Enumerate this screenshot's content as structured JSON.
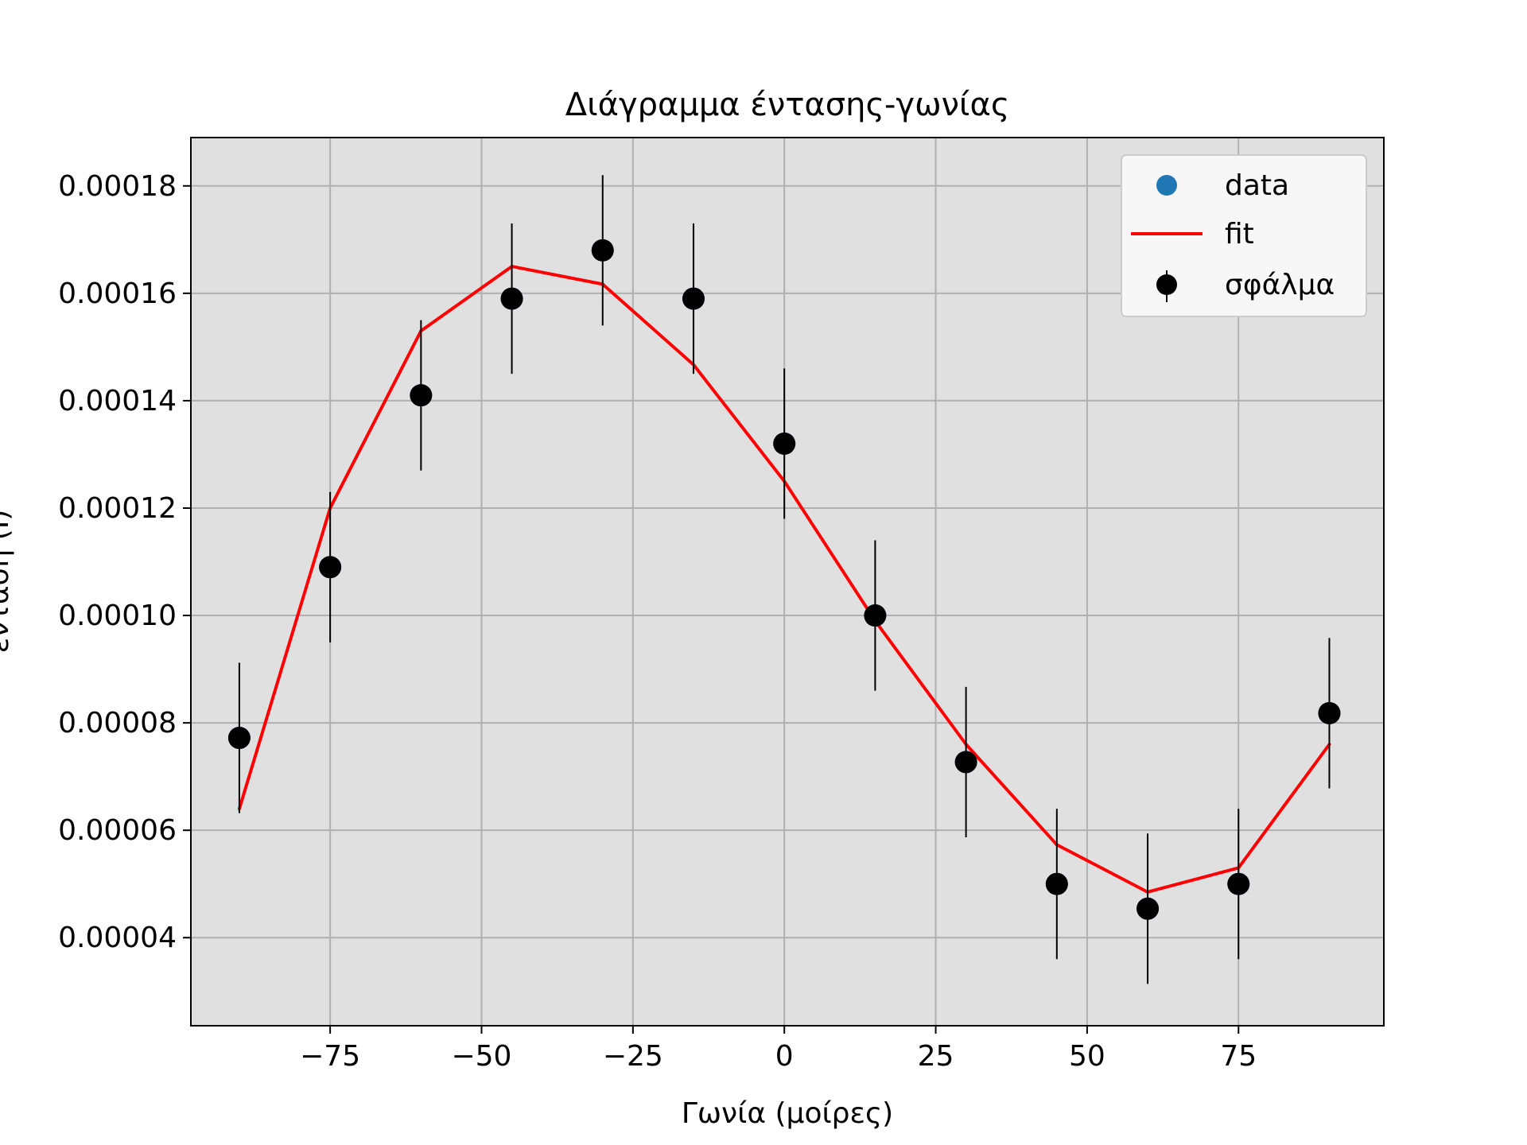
{
  "chart_data": {
    "type": "scatter",
    "title": "Διάγραμμα έντασης-γωνίας",
    "xlabel": "Γωνία (μοίρες)",
    "ylabel": "ένταση (I)",
    "xlim": [
      -98,
      99
    ],
    "ylim": [
      2.36e-05,
      0.000189
    ],
    "xticks": [
      -75,
      -50,
      -25,
      0,
      25,
      50,
      75
    ],
    "xtick_labels": [
      "−75",
      "−50",
      "−25",
      "0",
      "25",
      "50",
      "75"
    ],
    "yticks": [
      4e-05,
      6e-05,
      8e-05,
      0.0001,
      0.00012,
      0.00014,
      0.00016,
      0.00018
    ],
    "ytick_labels": [
      "0.00004",
      "0.00006",
      "0.00008",
      "0.00010",
      "0.00012",
      "0.00014",
      "0.00016",
      "0.00018"
    ],
    "grid": true,
    "legend_position": "top-right",
    "series": [
      {
        "name": "data",
        "kind": "scatter",
        "color": "#1f77b4",
        "x": [
          -90,
          -75,
          -60,
          -45,
          -30,
          -15,
          0,
          15,
          30,
          45,
          60,
          75,
          90
        ],
        "y": [
          7.72e-05,
          0.000109,
          0.000141,
          0.000159,
          0.000168,
          0.000159,
          0.000132,
          0.0001,
          7.27e-05,
          5e-05,
          4.54e-05,
          5e-05,
          8.18e-05
        ]
      },
      {
        "name": "fit",
        "kind": "line",
        "color": "#ff0000",
        "x": [
          -90,
          -75,
          -60,
          -45,
          -30,
          -15,
          0,
          15,
          30,
          45,
          60,
          75,
          90
        ],
        "y": [
          6.4e-05,
          0.00012,
          0.000153,
          0.000165,
          0.0001617,
          0.0001467,
          0.000125,
          9.9e-05,
          7.6e-05,
          5.73e-05,
          4.85e-05,
          5.3e-05,
          7.6e-05
        ]
      },
      {
        "name": "σφάλμα",
        "kind": "errorbar",
        "color": "#000000",
        "x": [
          -90,
          -75,
          -60,
          -45,
          -30,
          -15,
          0,
          15,
          30,
          45,
          60,
          75,
          90
        ],
        "y": [
          7.72e-05,
          0.000109,
          0.000141,
          0.000159,
          0.000168,
          0.000159,
          0.000132,
          0.0001,
          7.27e-05,
          5e-05,
          4.54e-05,
          5e-05,
          8.18e-05
        ],
        "yerr": [
          1.4e-05,
          1.4e-05,
          1.4e-05,
          1.4e-05,
          1.4e-05,
          1.4e-05,
          1.4e-05,
          1.4e-05,
          1.4e-05,
          1.4e-05,
          1.4e-05,
          1.4e-05,
          1.4e-05
        ]
      }
    ],
    "colors": {
      "plot_background": "#e0e0e0",
      "grid": "#b0b0b0",
      "legend_background": "#f7f7f7"
    }
  }
}
